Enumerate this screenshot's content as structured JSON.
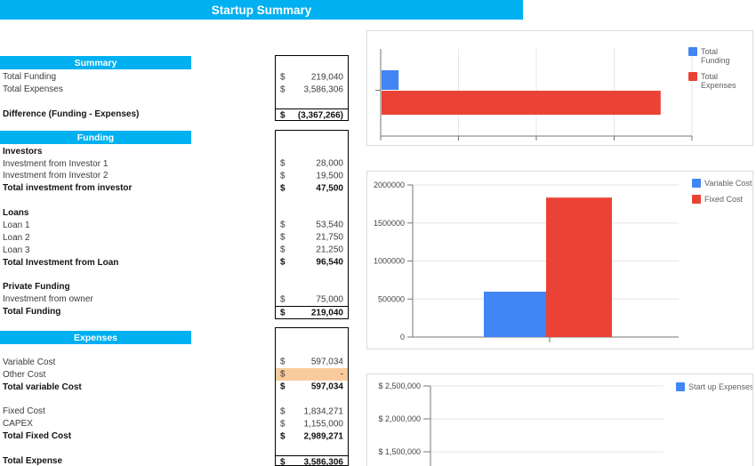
{
  "title_bar": {
    "text": "Startup Summary"
  },
  "colors": {
    "accent_cyan": "#00B0F0",
    "chart_blue": "#4285F4",
    "chart_red": "#EA4335",
    "highlight_orange": "#F9CB9C"
  },
  "sections": [
    {
      "header": "Summary",
      "rows": [
        {
          "label": "Total Funding",
          "currency": "$",
          "value": "219,040"
        },
        {
          "label": "Total Expenses",
          "currency": "$",
          "value": "3,586,306"
        },
        {
          "blank": true
        },
        {
          "label": "Difference (Funding - Expenses)",
          "currency": "$",
          "value": "(3,367,266)",
          "bold": true,
          "topline": true
        }
      ]
    },
    {
      "header": "Funding",
      "rows": [
        {
          "label": "Investors",
          "bold": true
        },
        {
          "label": "Investment from Investor 1",
          "currency": "$",
          "value": "28,000"
        },
        {
          "label": "Investment from Investor 2",
          "currency": "$",
          "value": "19,500"
        },
        {
          "label": "Total investment from investor",
          "currency": "$",
          "value": "47,500",
          "bold": true
        },
        {
          "blank": true
        },
        {
          "label": "Loans",
          "bold": true
        },
        {
          "label": "Loan 1",
          "currency": "$",
          "value": "53,540"
        },
        {
          "label": "Loan 2",
          "currency": "$",
          "value": "21,750"
        },
        {
          "label": "Loan 3",
          "currency": "$",
          "value": "21,250"
        },
        {
          "label": "Total Investment from Loan",
          "currency": "$",
          "value": "96,540",
          "bold": true
        },
        {
          "blank": true
        },
        {
          "label": "Private Funding",
          "bold": true
        },
        {
          "label": "Investment from owner",
          "currency": "$",
          "value": "75,000"
        },
        {
          "label": "Total Funding",
          "currency": "$",
          "value": "219,040",
          "bold": true,
          "topline": true
        }
      ]
    },
    {
      "header": "Expenses",
      "rows": [
        {
          "blank": true
        },
        {
          "label": "Variable Cost",
          "currency": "$",
          "value": "597,034"
        },
        {
          "label": "Other Cost",
          "currency": "$",
          "value": "-",
          "highlight": true
        },
        {
          "label": "Total variable Cost",
          "currency": "$",
          "value": "597,034",
          "bold": true
        },
        {
          "blank": true
        },
        {
          "label": "Fixed Cost",
          "currency": "$",
          "value": "1,834,271"
        },
        {
          "label": "CAPEX",
          "currency": "$",
          "value": "1,155,000"
        },
        {
          "label": "Total Fixed Cost",
          "currency": "$",
          "value": "2,989,271",
          "bold": true
        },
        {
          "blank": true
        },
        {
          "label": "Total Expense",
          "currency": "$",
          "value": "3,586,306",
          "bold": true,
          "topline": true
        }
      ]
    }
  ],
  "chart_data": [
    {
      "type": "bar",
      "orientation": "horizontal",
      "series": [
        {
          "name": "Total Funding",
          "value": 219040,
          "color": "#4285F4"
        },
        {
          "name": "Total Expenses",
          "value": 3586306,
          "color": "#EA4335"
        }
      ],
      "xlim": [
        0,
        4000000
      ],
      "grid_step": 1000000,
      "axis_tick_labels": [],
      "legend_position": "right",
      "legend": [
        [
          "Total",
          "Funding"
        ],
        [
          "Total",
          "Expenses"
        ]
      ]
    },
    {
      "type": "bar",
      "orientation": "vertical",
      "series": [
        {
          "name": "Variable Cost",
          "value": 597034,
          "color": "#4285F4"
        },
        {
          "name": "Fixed Cost",
          "value": 1834271,
          "color": "#EA4335"
        }
      ],
      "ylim": [
        0,
        2000000
      ],
      "yticks": [
        {
          "v": 0,
          "label": "0"
        },
        {
          "v": 500000,
          "label": "500000"
        },
        {
          "v": 1000000,
          "label": "1000000"
        },
        {
          "v": 1500000,
          "label": "1500000"
        },
        {
          "v": 2000000,
          "label": "2000000"
        }
      ],
      "legend_position": "right",
      "legend": [
        [
          "Variable Cost"
        ],
        [
          "Fixed Cost"
        ]
      ]
    },
    {
      "type": "bar",
      "orientation": "vertical",
      "series": [
        {
          "name": "Start up Expenses",
          "color": "#4285F4"
        }
      ],
      "yticks_visible": [
        {
          "label": "$ 2,500,000"
        },
        {
          "label": "$ 2,000,000"
        },
        {
          "label": "$ 1,500,000"
        }
      ],
      "legend_position": "right",
      "legend": [
        [
          "Start up Expenses"
        ]
      ]
    }
  ]
}
